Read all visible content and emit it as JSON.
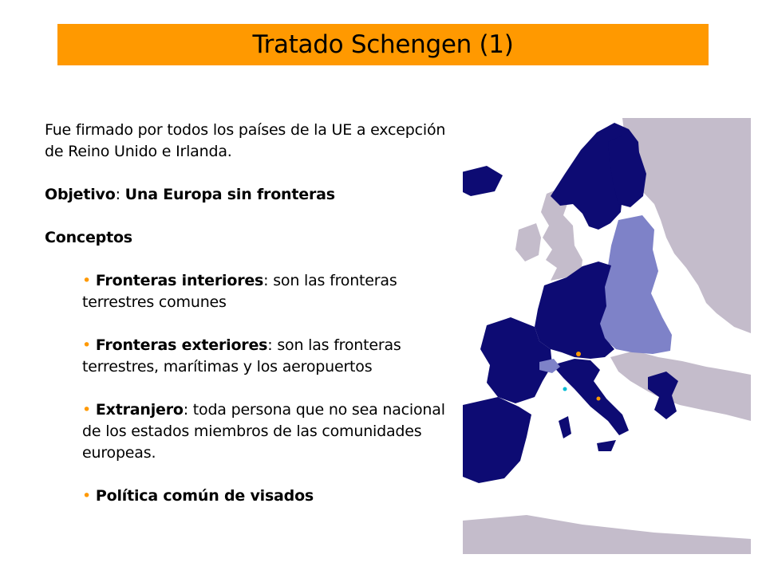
{
  "slide": {
    "title": "Tratado Schengen (1)",
    "intro": "Fue firmado por todos los países de la UE a excepción de Reino Unido e Irlanda.",
    "objective": {
      "label": "Objetivo",
      "sep": ": ",
      "text": "Una Europa sin fronteras"
    },
    "concepts_heading": "Conceptos",
    "bullets": [
      {
        "marker": "•",
        "term": "Fronteras interiores",
        "sep": ": ",
        "text": "son las fronteras terrestres comunes"
      },
      {
        "marker": "•",
        "term": "Fronteras exteriores",
        "sep": ": ",
        "text": "son las fronteras terrestres, marítimas y los aeropuertos"
      },
      {
        "marker": "•",
        "term": "Extranjero",
        "sep": ": ",
        "text": "toda persona que no sea nacional de los estados miembros de las comunidades europeas."
      },
      {
        "marker": "•",
        "term": "Política común de visados",
        "sep": "",
        "text": ""
      }
    ]
  },
  "colors": {
    "title_bar": "#ff9900",
    "bullet": "#ff9900",
    "schengen_members": "#0d0b73",
    "eu_non_schengen": "#7e82c8",
    "other_countries": "#c4bccb",
    "sea": "#ffffff"
  },
  "map": {
    "icon": "europe-schengen-map"
  }
}
